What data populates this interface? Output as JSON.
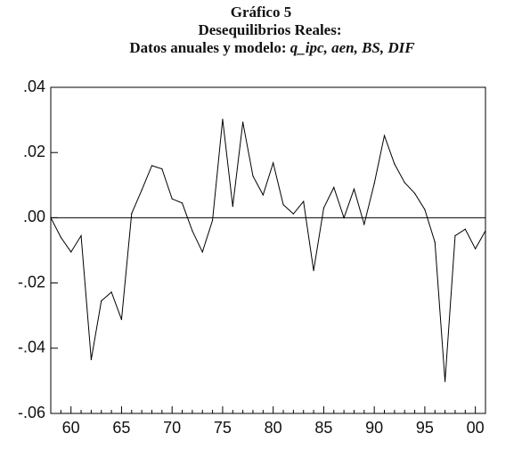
{
  "header": {
    "title": "Gráfico 5",
    "subtitle": "Desequilibrios Reales:",
    "caption_prefix": "Datos anuales y modelo:",
    "caption_vars": "q_ipc, aen, BS, DIF"
  },
  "chart_data": {
    "type": "line",
    "title": "Gráfico 5",
    "subtitle": "Desequilibrios Reales: Datos anuales y modelo: q_ipc, aen, BS, DIF",
    "xlabel": "",
    "ylabel": "",
    "xlim": [
      1958,
      2001
    ],
    "ylim": [
      -0.06,
      0.04
    ],
    "y_ticks": [
      ".04",
      ".02",
      ".00",
      "-.02",
      "-.04",
      "-.06"
    ],
    "y_tick_values": [
      0.04,
      0.02,
      0.0,
      -0.02,
      -0.04,
      -0.06
    ],
    "x_ticks": [
      "60",
      "65",
      "70",
      "75",
      "80",
      "85",
      "90",
      "95",
      "00"
    ],
    "x_tick_values": [
      1960,
      1965,
      1970,
      1975,
      1980,
      1985,
      1990,
      1995,
      2000
    ],
    "reference_line": 0.0,
    "grid": false,
    "line_color": "#000000",
    "series": [
      {
        "x": [
          1958,
          1959,
          1960,
          1961,
          1962,
          1963,
          1964,
          1965,
          1966,
          1967,
          1968,
          1969,
          1970,
          1971,
          1972,
          1973,
          1974,
          1975,
          1976,
          1977,
          1978,
          1979,
          1980,
          1981,
          1982,
          1983,
          1984,
          1985,
          1986,
          1987,
          1988,
          1989,
          1990,
          1991,
          1992,
          1993,
          1994,
          1995,
          1996,
          1997,
          1998,
          1999,
          2000,
          2001
        ],
        "y": [
          0.0,
          -0.006,
          -0.0105,
          -0.0055,
          -0.0435,
          -0.0255,
          -0.0228,
          -0.0312,
          0.0013,
          0.0085,
          0.016,
          0.015,
          0.0058,
          0.0045,
          -0.004,
          -0.0105,
          -0.0008,
          0.0302,
          0.0035,
          0.0293,
          0.0128,
          0.007,
          0.0168,
          0.004,
          0.0012,
          0.005,
          -0.0162,
          0.003,
          0.0093,
          0.0,
          0.0088,
          -0.002,
          0.0105,
          0.0252,
          0.0165,
          0.0108,
          0.0075,
          0.0025,
          -0.0075,
          -0.0502,
          -0.0055,
          -0.0035,
          -0.0095,
          -0.004
        ]
      }
    ]
  }
}
